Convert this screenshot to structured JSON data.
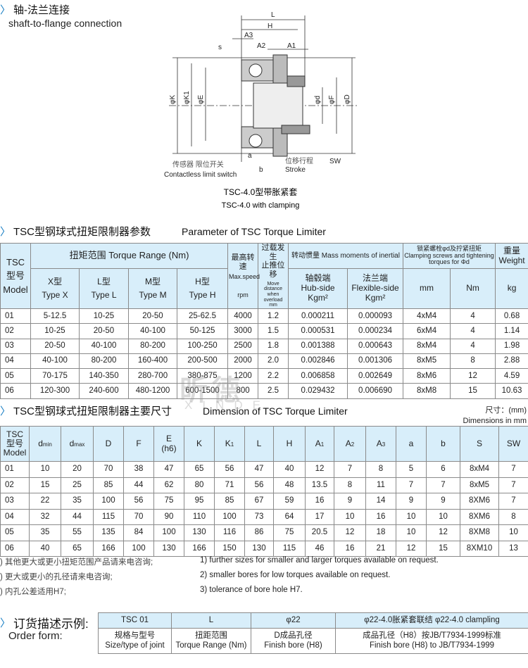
{
  "section1": {
    "title_cn": "轴-法兰连接",
    "title_en": "shaft-to-flange connection"
  },
  "drawing": {
    "labels": {
      "L": "L",
      "H": "H",
      "A3": "A3",
      "A2": "A2",
      "A1": "A1",
      "s": "s",
      "K": "φK",
      "K1": "φK1",
      "E": "φE",
      "d": "φd",
      "F": "φF",
      "D": "φD",
      "a": "a",
      "b": "b",
      "SW": "SW",
      "sensor_cn": "传感器  限位开关",
      "sensor_en": "Contactless limit switch",
      "stroke_cn": "位移行程",
      "stroke_en": "Stroke"
    },
    "caption_cn": "TSC-4.0型带胀紧套",
    "caption_en": "TSC-4.0 with clamping"
  },
  "section2": {
    "title_cn": "TSC型钢球式扭矩限制器参数",
    "title_en": "Parameter of TSC Torque Limiter"
  },
  "table1": {
    "h_model": [
      "TSC",
      "型号",
      "Model"
    ],
    "h_torque": "扭矩范围   Torque Range (Nm)",
    "h_types": [
      [
        "X型",
        "Type X"
      ],
      [
        "L型",
        "Type L"
      ],
      [
        "M型",
        "Type M"
      ],
      [
        "H型",
        "Type H"
      ]
    ],
    "h_speed": [
      "最高转速",
      "Max.speed",
      "rpm"
    ],
    "h_move": [
      "过载发生",
      "止推位移",
      "Move distance when overload",
      "mm"
    ],
    "h_inertia": "转动惯量 Mass moments of inertial",
    "h_hub": [
      "轴毂端",
      "Hub-side",
      "Kgm²"
    ],
    "h_flex": [
      "法兰端",
      "Flexible-side",
      "Kgm²"
    ],
    "h_clamp": [
      "锁紧螺栓φd及拧紧扭矩",
      "Clamping screws and tightening torques for Φd"
    ],
    "h_mm": "mm",
    "h_nm": "Nm",
    "h_weight": [
      "重量",
      "Weight",
      "kg"
    ],
    "rows": [
      [
        "01",
        "5-12.5",
        "10-25",
        "20-50",
        "25-62.5",
        "4000",
        "1.2",
        "0.000211",
        "0.000093",
        "4xM4",
        "4",
        "0.68"
      ],
      [
        "02",
        "10-25",
        "20-50",
        "40-100",
        "50-125",
        "3000",
        "1.5",
        "0.000531",
        "0.000234",
        "6xM4",
        "4",
        "1.14"
      ],
      [
        "03",
        "20-50",
        "40-100",
        "80-200",
        "100-250",
        "2500",
        "1.8",
        "0.001388",
        "0.000643",
        "8xM4",
        "4",
        "1.98"
      ],
      [
        "04",
        "40-100",
        "80-200",
        "160-400",
        "200-500",
        "2000",
        "2.0",
        "0.002846",
        "0.001306",
        "8xM5",
        "8",
        "2.88"
      ],
      [
        "05",
        "70-175",
        "140-350",
        "280-700",
        "380-875",
        "1200",
        "2.2",
        "0.006858",
        "0.002649",
        "8xM6",
        "12",
        "4.59"
      ],
      [
        "06",
        "120-300",
        "240-600",
        "480-1200",
        "600-1500",
        "800",
        "2.5",
        "0.029432",
        "0.006690",
        "8xM8",
        "15",
        "10.63"
      ]
    ]
  },
  "watermark": {
    "cn": "昕德",
    "en": "XINDE"
  },
  "section3": {
    "title_cn": "TSC型钢球式扭矩限制器主要尺寸",
    "title_en": "Dimension of TSC Torque Limiter",
    "unit_cn": "尺寸：(mm)",
    "unit_en": "Dimensions in mm"
  },
  "table2": {
    "h_model": [
      "TSC",
      "型号",
      "Model"
    ],
    "headers": [
      [
        "d",
        "min"
      ],
      [
        "d",
        "max"
      ],
      [
        "D",
        ""
      ],
      [
        "F",
        ""
      ],
      [
        "E",
        "(h6)"
      ],
      [
        "K",
        ""
      ],
      [
        "K",
        "1"
      ],
      [
        "L",
        ""
      ],
      [
        "H",
        ""
      ],
      [
        "A",
        "1"
      ],
      [
        "A",
        "2"
      ],
      [
        "A",
        "3"
      ],
      [
        "a",
        ""
      ],
      [
        "b",
        ""
      ],
      [
        "S",
        ""
      ],
      [
        "SW",
        ""
      ]
    ],
    "rows": [
      [
        "01",
        "10",
        "20",
        "70",
        "38",
        "47",
        "65",
        "56",
        "47",
        "40",
        "12",
        "7",
        "8",
        "5",
        "6",
        "8xM4",
        "7"
      ],
      [
        "02",
        "15",
        "25",
        "85",
        "44",
        "62",
        "80",
        "71",
        "56",
        "48",
        "13.5",
        "8",
        "11",
        "7",
        "7",
        "8xM5",
        "7"
      ],
      [
        "03",
        "22",
        "35",
        "100",
        "56",
        "75",
        "95",
        "85",
        "67",
        "59",
        "16",
        "9",
        "14",
        "9",
        "9",
        "8XM6",
        "7"
      ],
      [
        "04",
        "32",
        "44",
        "115",
        "70",
        "90",
        "110",
        "100",
        "73",
        "64",
        "17",
        "10",
        "16",
        "10",
        "10",
        "8XM6",
        "8"
      ],
      [
        "05",
        "35",
        "55",
        "135",
        "84",
        "100",
        "130",
        "116",
        "86",
        "75",
        "20.5",
        "12",
        "18",
        "10",
        "12",
        "8XM8",
        "10"
      ],
      [
        "06",
        "40",
        "65",
        "166",
        "100",
        "130",
        "166",
        "150",
        "130",
        "115",
        "46",
        "16",
        "21",
        "12",
        "15",
        "8XM10",
        "13"
      ]
    ]
  },
  "notes": [
    {
      "cn": ")  其他更大或更小扭矩范围产品请来电咨询;",
      "en": "1)  further sizes for smaller and larger torques available on request."
    },
    {
      "cn": ")  更大或更小的孔径请来电咨询;",
      "en": "2)  smaller bores for low torques available on request."
    },
    {
      "cn": ")  内孔公差适用H7;",
      "en": "3)  tolerance of bore hole H7."
    }
  ],
  "order": {
    "title_cn": "订货描述示例:",
    "title_en": "Order form:",
    "example": [
      "TSC 01",
      "L",
      "φ22",
      "φ22-4.0胀紧套联结   φ22-4.0  clampling"
    ],
    "desc": [
      [
        "规格与型号",
        "Size/type of joint"
      ],
      [
        "扭距范围",
        "Torque Range (Nm)"
      ],
      [
        "D成品孔径",
        "Finish bore (H8)"
      ],
      [
        "成品孔径（H8）按JB/T7934-1999标准",
        "Finish bore (H8) to JB/T7934-1999"
      ]
    ]
  }
}
